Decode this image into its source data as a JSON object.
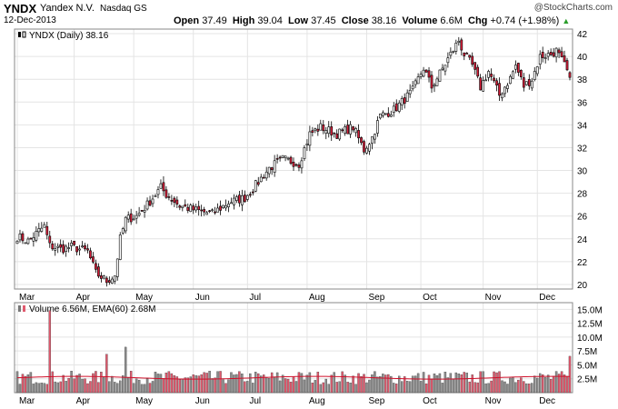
{
  "header": {
    "ticker": "YNDX",
    "company": "Yandex N.V.",
    "exchange": "Nasdaq GS",
    "date": "12-Dec-2013",
    "copyright": "@StockCharts.com",
    "open_label": "Open",
    "open": "37.49",
    "high_label": "High",
    "high": "39.04",
    "low_label": "Low",
    "low": "37.45",
    "close_label": "Close",
    "close": "38.16",
    "volume_label": "Volume",
    "volume": "6.6M",
    "chg_label": "Chg",
    "chg": "+0.74 (+1.98%)",
    "chg_arrow": "▲"
  },
  "colors": {
    "up_candle": "#ffffff",
    "down_candle": "#d61f3a",
    "outline": "#000000",
    "volume_up": "#8c8c8c",
    "volume_down": "#e05a6e",
    "ema_line": "#d0102a",
    "grid": "#e4e4e4"
  },
  "chart_data": [
    {
      "type": "candlestick",
      "legend": "YNDX (Daily) 38.16",
      "y_ticks": [
        20,
        22,
        24,
        26,
        28,
        30,
        32,
        34,
        36,
        38,
        40,
        42
      ],
      "ylim": [
        19.6,
        42.4
      ],
      "x_ticks": [
        "Mar",
        "Apr",
        "May",
        "Jun",
        "Jul",
        "Aug",
        "Sep",
        "Oct",
        "Nov",
        "Dec"
      ],
      "x_tick_index": [
        0,
        21,
        43,
        65,
        85,
        107,
        129,
        149,
        172,
        192
      ],
      "anchors": [
        [
          0,
          24.2
        ],
        [
          4,
          23.8
        ],
        [
          8,
          24.7
        ],
        [
          10,
          25.1
        ],
        [
          12,
          23.4
        ],
        [
          16,
          23.1
        ],
        [
          20,
          23.3
        ],
        [
          26,
          22.9
        ],
        [
          29,
          21.0
        ],
        [
          33,
          20.3
        ],
        [
          36,
          20.8
        ],
        [
          38,
          24.0
        ],
        [
          40,
          25.7
        ],
        [
          44,
          26.0
        ],
        [
          48,
          27.0
        ],
        [
          53,
          28.5
        ],
        [
          55,
          27.9
        ],
        [
          60,
          26.9
        ],
        [
          66,
          26.5
        ],
        [
          72,
          26.2
        ],
        [
          78,
          27.2
        ],
        [
          84,
          27.6
        ],
        [
          89,
          29.0
        ],
        [
          93,
          30.2
        ],
        [
          98,
          31.0
        ],
        [
          104,
          30.6
        ],
        [
          108,
          33.2
        ],
        [
          112,
          33.8
        ],
        [
          118,
          33.2
        ],
        [
          124,
          33.8
        ],
        [
          128,
          31.8
        ],
        [
          131,
          32.9
        ],
        [
          134,
          34.8
        ],
        [
          139,
          35.3
        ],
        [
          142,
          36.0
        ],
        [
          146,
          37.0
        ],
        [
          150,
          39.0
        ],
        [
          153,
          37.3
        ],
        [
          156,
          38.5
        ],
        [
          160,
          40.2
        ],
        [
          163,
          41.4
        ],
        [
          165,
          40.2
        ],
        [
          168,
          39.2
        ],
        [
          171,
          37.3
        ],
        [
          174,
          38.7
        ],
        [
          178,
          36.6
        ],
        [
          182,
          38.1
        ],
        [
          184,
          39.2
        ],
        [
          187,
          37.4
        ],
        [
          190,
          38.0
        ],
        [
          193,
          40.0
        ],
        [
          197,
          40.2
        ],
        [
          199,
          40.5
        ],
        [
          202,
          39.2
        ],
        [
          204,
          38.16
        ]
      ],
      "count": 205
    },
    {
      "type": "bar",
      "legend": "Volume 6.56M, EMA(60) 2.68M",
      "y_ticks": [
        2.5,
        5.0,
        7.5,
        10.0,
        12.5,
        15.0
      ],
      "y_tick_labels": [
        "2.5M",
        "5.0M",
        "7.5M",
        "10.0M",
        "12.5M",
        "15.0M"
      ],
      "ylim": [
        0,
        16.2
      ],
      "ema_level": 2.68,
      "spikes": [
        [
          12,
          14.8
        ],
        [
          33,
          6.9
        ],
        [
          40,
          8.2
        ],
        [
          204,
          6.56
        ]
      ],
      "base_level": 2.7
    }
  ]
}
